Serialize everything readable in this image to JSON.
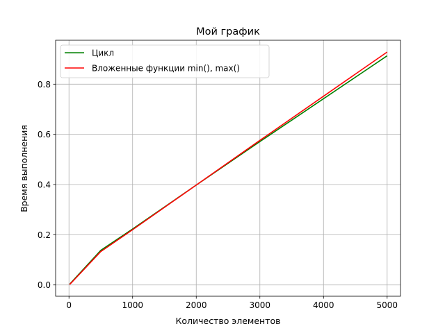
{
  "chart_data": {
    "type": "line",
    "title": "Мой график",
    "xlabel": "Количество элементов",
    "ylabel": "Время выполнения",
    "xlim": [
      -210,
      5210
    ],
    "ylim": [
      -0.045,
      0.975
    ],
    "xticks": [
      0,
      1000,
      2000,
      3000,
      4000,
      5000
    ],
    "yticks": [
      0.0,
      0.2,
      0.4,
      0.6,
      0.8
    ],
    "ytick_labels": [
      "0.0",
      "0.2",
      "0.4",
      "0.6",
      "0.8"
    ],
    "grid": true,
    "legend_position": "top-left",
    "series": [
      {
        "name": "Цикл",
        "color": "#008000",
        "x": [
          10,
          50,
          500,
          1000,
          2000,
          3000,
          4000,
          5000
        ],
        "y": [
          0.003,
          0.014,
          0.138,
          0.223,
          0.398,
          0.571,
          0.742,
          0.913
        ]
      },
      {
        "name": "Вложенные функции min(), max()",
        "color": "#ff0000",
        "x": [
          10,
          50,
          500,
          1000,
          2000,
          3000,
          4000,
          5000
        ],
        "y": [
          0.002,
          0.012,
          0.133,
          0.22,
          0.398,
          0.576,
          0.752,
          0.928
        ]
      }
    ]
  }
}
